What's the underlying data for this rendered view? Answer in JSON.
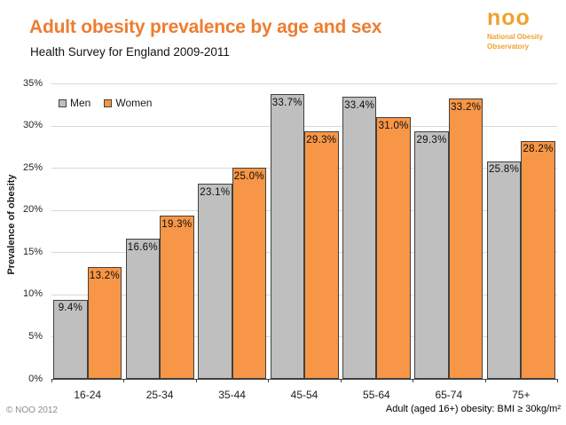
{
  "header": {
    "title": "Adult obesity prevalence by age and sex",
    "subtitle": "Health Survey for England 2009-2011"
  },
  "logo": {
    "acronym": "noo",
    "name_line1": "National Obesity",
    "name_line2": "Observatory"
  },
  "footer": {
    "left": "© NOO 2012",
    "right": "Adult (aged 16+) obesity: BMI ≥ 30kg/m²"
  },
  "colors": {
    "title_orange": "#ED7D31",
    "logo_orange": "#EFA22E",
    "men_bar": "#BFBFBF",
    "women_bar": "#F79646",
    "bar_border": "#404040",
    "gridline": "#D9D9D9",
    "axis_line": "#3F3F3F"
  },
  "chart_data": {
    "type": "bar",
    "title": "Adult obesity prevalence by age and sex",
    "subtitle": "Health Survey for England 2009-2011",
    "categories": [
      "16-24",
      "25-34",
      "35-44",
      "45-54",
      "55-64",
      "65-74",
      "75+"
    ],
    "series": [
      {
        "name": "Men",
        "color": "#BFBFBF",
        "values": [
          9.4,
          16.6,
          23.1,
          33.7,
          33.4,
          29.3,
          25.8
        ]
      },
      {
        "name": "Women",
        "color": "#F79646",
        "values": [
          13.2,
          19.3,
          25.0,
          29.3,
          31.0,
          33.2,
          28.2
        ]
      }
    ],
    "xlabel": "",
    "ylabel": "Prevalence of obesity",
    "ylim": [
      0,
      35
    ],
    "ytick_step": 5,
    "ytick_suffix": "%",
    "data_label_decimals": 1,
    "data_label_suffix": "%",
    "grid": true,
    "legend_position": "top-left-inside"
  }
}
